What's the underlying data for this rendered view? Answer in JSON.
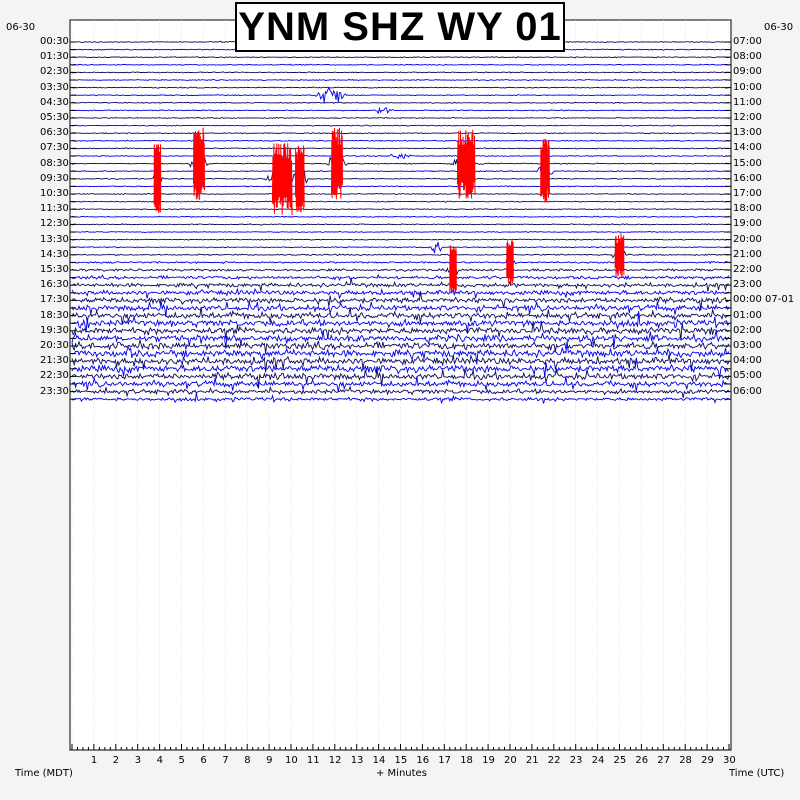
{
  "title": "YNM SHZ WY 01",
  "date_left": "06-30",
  "date_right": "06-30",
  "xlabel": "+ Minutes",
  "xlabel_left": "Time (MDT)",
  "xlabel_right": "Time (UTC)",
  "colors": {
    "background": "#f4f4f4",
    "plot_background": "#ffffff",
    "trace_dark": "#0c0c5c",
    "trace_blue": "#0000ee",
    "event_highlight": "#ff0000"
  },
  "chart_data": {
    "type": "line",
    "title": "YNM SHZ WY 01",
    "xlabel": "+ Minutes",
    "x_ticks": [
      "1",
      "2",
      "3",
      "4",
      "5",
      "6",
      "7",
      "8",
      "9",
      "10",
      "11",
      "12",
      "13",
      "14",
      "15",
      "16",
      "17",
      "18",
      "19",
      "20",
      "21",
      "22",
      "23",
      "24",
      "25",
      "26",
      "27",
      "28",
      "29",
      "30"
    ],
    "xlim": [
      0,
      30
    ],
    "traces_per_hour": 2,
    "trace_count": 48,
    "left_time_labels_mdt": [
      "00:30",
      "01:30",
      "02:30",
      "03:30",
      "04:30",
      "05:30",
      "06:30",
      "07:30",
      "08:30",
      "09:30",
      "10:30",
      "11:30",
      "12:30",
      "13:30",
      "14:30",
      "15:30",
      "16:30",
      "17:30",
      "18:30",
      "19:30",
      "20:30",
      "21:30",
      "22:30",
      "23:30"
    ],
    "right_time_labels_utc": [
      "07:00",
      "08:00",
      "09:00",
      "10:00",
      "11:00",
      "12:00",
      "13:00",
      "14:00",
      "15:00",
      "16:00",
      "17:00",
      "18:00",
      "19:00",
      "20:00",
      "21:00",
      "22:00",
      "23:00",
      "00:00 07-01",
      "01:00",
      "02:00",
      "03:00",
      "04:00",
      "05:00",
      "06:00"
    ],
    "trace_colors": [
      "trace_dark",
      "trace_blue"
    ],
    "noise_profile_by_trace": [
      0.3,
      0.3,
      0.3,
      0.3,
      0.3,
      0.3,
      0.3,
      0.3,
      0.3,
      0.3,
      0.3,
      0.3,
      0.3,
      0.3,
      0.3,
      0.3,
      0.3,
      0.3,
      0.3,
      0.3,
      0.3,
      0.3,
      0.3,
      0.3,
      0.3,
      0.3,
      0.3,
      0.3,
      0.4,
      0.5,
      0.7,
      0.9,
      1.1,
      1.3,
      1.5,
      1.6,
      1.8,
      1.8,
      1.9,
      1.9,
      2.0,
      2.0,
      2.0,
      2.0,
      1.8,
      1.6,
      1.3,
      1.0
    ],
    "events": [
      {
        "trace": 7,
        "minute": 11.8,
        "amplitude": 2.0,
        "duration_min": 0.8,
        "highlight": false
      },
      {
        "trace": 9,
        "minute": 14.2,
        "amplitude": 0.8,
        "duration_min": 0.5,
        "highlight": false
      },
      {
        "trace": 15,
        "minute": 15.0,
        "amplitude": 0.8,
        "duration_min": 0.6,
        "highlight": false
      },
      {
        "trace": 16,
        "minute": 5.8,
        "amplitude": 2.6,
        "duration_min": 0.5,
        "highlight": true
      },
      {
        "trace": 16,
        "minute": 12.1,
        "amplitude": 2.6,
        "duration_min": 0.5,
        "highlight": true
      },
      {
        "trace": 16,
        "minute": 18.0,
        "amplitude": 2.6,
        "duration_min": 0.8,
        "highlight": true
      },
      {
        "trace": 17,
        "minute": 21.6,
        "amplitude": 2.4,
        "duration_min": 0.4,
        "highlight": true
      },
      {
        "trace": 18,
        "minute": 3.9,
        "amplitude": 2.5,
        "duration_min": 0.3,
        "highlight": true
      },
      {
        "trace": 18,
        "minute": 9.6,
        "amplitude": 2.6,
        "duration_min": 0.9,
        "highlight": true
      },
      {
        "trace": 18,
        "minute": 10.4,
        "amplitude": 2.4,
        "duration_min": 0.4,
        "highlight": true
      },
      {
        "trace": 27,
        "minute": 16.6,
        "amplitude": 1.8,
        "duration_min": 0.4,
        "highlight": false
      },
      {
        "trace": 28,
        "minute": 25.0,
        "amplitude": 1.6,
        "duration_min": 0.4,
        "highlight": true
      },
      {
        "trace": 29,
        "minute": 20.0,
        "amplitude": 1.6,
        "duration_min": 0.3,
        "highlight": true
      },
      {
        "trace": 30,
        "minute": 17.4,
        "amplitude": 1.8,
        "duration_min": 0.3,
        "highlight": true
      },
      {
        "trace": 37,
        "minute": 0.6,
        "amplitude": 1.2,
        "duration_min": 0.6,
        "highlight": false
      },
      {
        "trace": 39,
        "minute": 24.7,
        "amplitude": 1.0,
        "duration_min": 0.5,
        "highlight": false
      },
      {
        "trace": 41,
        "minute": 2.6,
        "amplitude": 1.0,
        "duration_min": 0.4,
        "highlight": false
      }
    ]
  }
}
